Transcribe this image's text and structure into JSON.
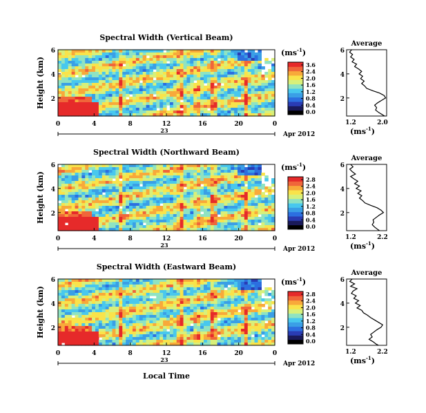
{
  "figure": {
    "xlabel": "Local Time",
    "date_label": "23",
    "month_year_label": "Apr 2012",
    "colorbar_unit_label": "(ms",
    "colorbar_unit_exp": "-1",
    "avg_title": "Average",
    "avg_xlabel": "(ms",
    "avg_xlabel_exp": "-1",
    "ylabel": "Height (km)"
  },
  "colors": {
    "colormap": [
      "#000000",
      "#1a1a5a",
      "#2a3cb4",
      "#2c6fe0",
      "#3a9fe6",
      "#48c8ee",
      "#8fe3c2",
      "#d8f07a",
      "#f9e34a",
      "#f8a93a",
      "#f0663a",
      "#e62a2a"
    ],
    "profile_line": "#000000"
  },
  "chart_data": [
    {
      "type": "heatmap",
      "title": "Spectral Width (Vertical Beam)",
      "x_ticks": [
        "0",
        "4",
        "8",
        "12",
        "16",
        "20",
        "0"
      ],
      "y_ticks": [
        "6",
        "4",
        "2"
      ],
      "xlim": [
        0,
        24
      ],
      "ylim": [
        0.5,
        6
      ],
      "colorbar": {
        "ticks": [
          "3.6",
          "2.4",
          "2.0",
          "1.6",
          "1.2",
          "0.8",
          "0.4",
          "0.0"
        ],
        "range": [
          0.0,
          3.6
        ]
      },
      "average_profile": {
        "x_ticks": [
          "1.2",
          "2.0"
        ],
        "xlim": [
          1.2,
          2.0
        ],
        "y_ticks": [
          "6",
          "4",
          "2"
        ],
        "heights": [
          6.0,
          5.8,
          5.6,
          5.4,
          5.2,
          5.0,
          4.8,
          4.6,
          4.4,
          4.2,
          4.0,
          3.8,
          3.6,
          3.4,
          3.2,
          3.0,
          2.8,
          2.6,
          2.4,
          2.2,
          2.0,
          1.8,
          1.6,
          1.4,
          1.2,
          1.0,
          0.8,
          0.6,
          0.5
        ],
        "values": [
          1.3,
          1.26,
          1.32,
          1.28,
          1.35,
          1.31,
          1.4,
          1.36,
          1.44,
          1.5,
          1.45,
          1.52,
          1.48,
          1.55,
          1.5,
          1.56,
          1.6,
          1.72,
          1.86,
          1.95,
          1.98,
          1.9,
          1.82,
          1.76,
          1.8,
          1.78,
          1.84,
          1.92,
          1.96
        ]
      }
    },
    {
      "type": "heatmap",
      "title": "Spectral Width (Northward Beam)",
      "x_ticks": [
        "0",
        "4",
        "8",
        "12",
        "16",
        "20",
        "0"
      ],
      "y_ticks": [
        "6",
        "4",
        "2"
      ],
      "xlim": [
        0,
        24
      ],
      "ylim": [
        0.5,
        6
      ],
      "colorbar": {
        "ticks": [
          "2.8",
          "2.4",
          "2.0",
          "1.6",
          "1.2",
          "0.8",
          "0.4",
          "0.0"
        ],
        "range": [
          0.0,
          2.8
        ]
      },
      "average_profile": {
        "x_ticks": [
          "1.2",
          "2.2"
        ],
        "xlim": [
          1.2,
          2.2
        ],
        "y_ticks": [
          "6",
          "4",
          "2"
        ],
        "heights": [
          6.0,
          5.8,
          5.6,
          5.4,
          5.2,
          5.0,
          4.8,
          4.6,
          4.4,
          4.2,
          4.0,
          3.8,
          3.6,
          3.4,
          3.2,
          3.0,
          2.8,
          2.6,
          2.4,
          2.2,
          2.0,
          1.8,
          1.6,
          1.4,
          1.2,
          1.0,
          0.8,
          0.6,
          0.5
        ],
        "values": [
          1.3,
          1.36,
          1.28,
          1.34,
          1.42,
          1.3,
          1.38,
          1.48,
          1.4,
          1.52,
          1.44,
          1.56,
          1.48,
          1.58,
          1.52,
          1.6,
          1.66,
          1.8,
          1.96,
          2.06,
          2.12,
          2.02,
          1.94,
          1.86,
          1.88,
          1.84,
          1.9,
          1.98,
          2.02
        ]
      }
    },
    {
      "type": "heatmap",
      "title": "Spectral Width (Eastward Beam)",
      "x_ticks": [
        "0",
        "4",
        "8",
        "12",
        "16",
        "20",
        "0"
      ],
      "y_ticks": [
        "6",
        "4",
        "2"
      ],
      "xlim": [
        0,
        24
      ],
      "ylim": [
        0.5,
        6
      ],
      "colorbar": {
        "ticks": [
          "2.8",
          "2.4",
          "2.0",
          "1.6",
          "1.2",
          "0.8",
          "0.4",
          "0.0"
        ],
        "range": [
          0.0,
          2.8
        ]
      },
      "average_profile": {
        "x_ticks": [
          "1.2",
          "2.2"
        ],
        "xlim": [
          1.2,
          2.2
        ],
        "y_ticks": [
          "6",
          "4",
          "2"
        ],
        "heights": [
          6.0,
          5.8,
          5.6,
          5.4,
          5.2,
          5.0,
          4.8,
          4.6,
          4.4,
          4.2,
          4.0,
          3.8,
          3.6,
          3.4,
          3.2,
          3.0,
          2.8,
          2.6,
          2.4,
          2.2,
          2.0,
          1.8,
          1.6,
          1.4,
          1.2,
          1.0,
          0.8,
          0.6,
          0.5
        ],
        "values": [
          1.34,
          1.28,
          1.4,
          1.3,
          1.46,
          1.36,
          1.32,
          1.44,
          1.38,
          1.5,
          1.42,
          1.54,
          1.46,
          1.58,
          1.62,
          1.72,
          1.8,
          1.9,
          2.0,
          2.1,
          2.06,
          1.96,
          1.88,
          1.8,
          1.84,
          1.76,
          1.86,
          1.94,
          2.0
        ]
      }
    }
  ]
}
